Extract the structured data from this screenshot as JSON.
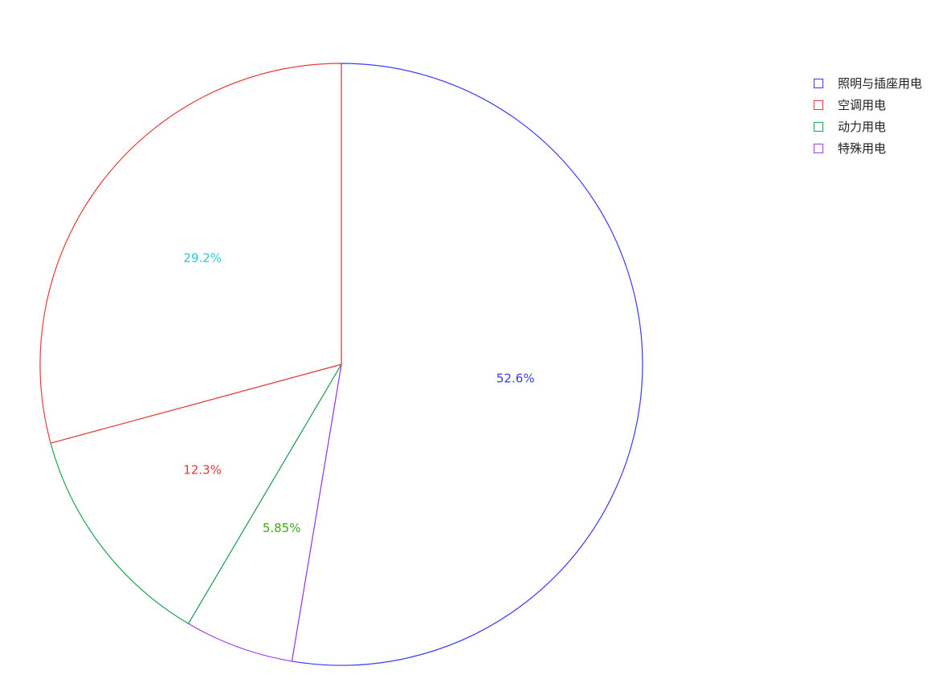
{
  "chart_data": {
    "type": "pie",
    "title": "",
    "start_angle_deg": 0,
    "direction": "clockwise",
    "slices": [
      {
        "name": "照明与插座用电",
        "value": 52.6,
        "label": "52.6%",
        "stroke_color": "#3a3af0",
        "label_color": "#3a3af0"
      },
      {
        "name": "特殊用电",
        "value": 5.85,
        "label": "5.85%",
        "stroke_color": "#9b3ef0",
        "label_color": "#3aaa0a"
      },
      {
        "name": "动力用电",
        "value": 12.3,
        "label": "12.3%",
        "stroke_color": "#1aa552",
        "label_color": "#e03a3a"
      },
      {
        "name": "空调用电",
        "value": 29.2,
        "label": "29.2%",
        "stroke_color": "#e83a3a",
        "label_color": "#27c8d8"
      }
    ],
    "legend": {
      "placement": "top-right",
      "items": [
        {
          "label": "照明与插座用电",
          "color": "#3a3af0"
        },
        {
          "label": "空调用电",
          "color": "#e83a3a"
        },
        {
          "label": "动力用电",
          "color": "#1aa552"
        },
        {
          "label": "特殊用电",
          "color": "#9b3ef0"
        }
      ]
    }
  }
}
